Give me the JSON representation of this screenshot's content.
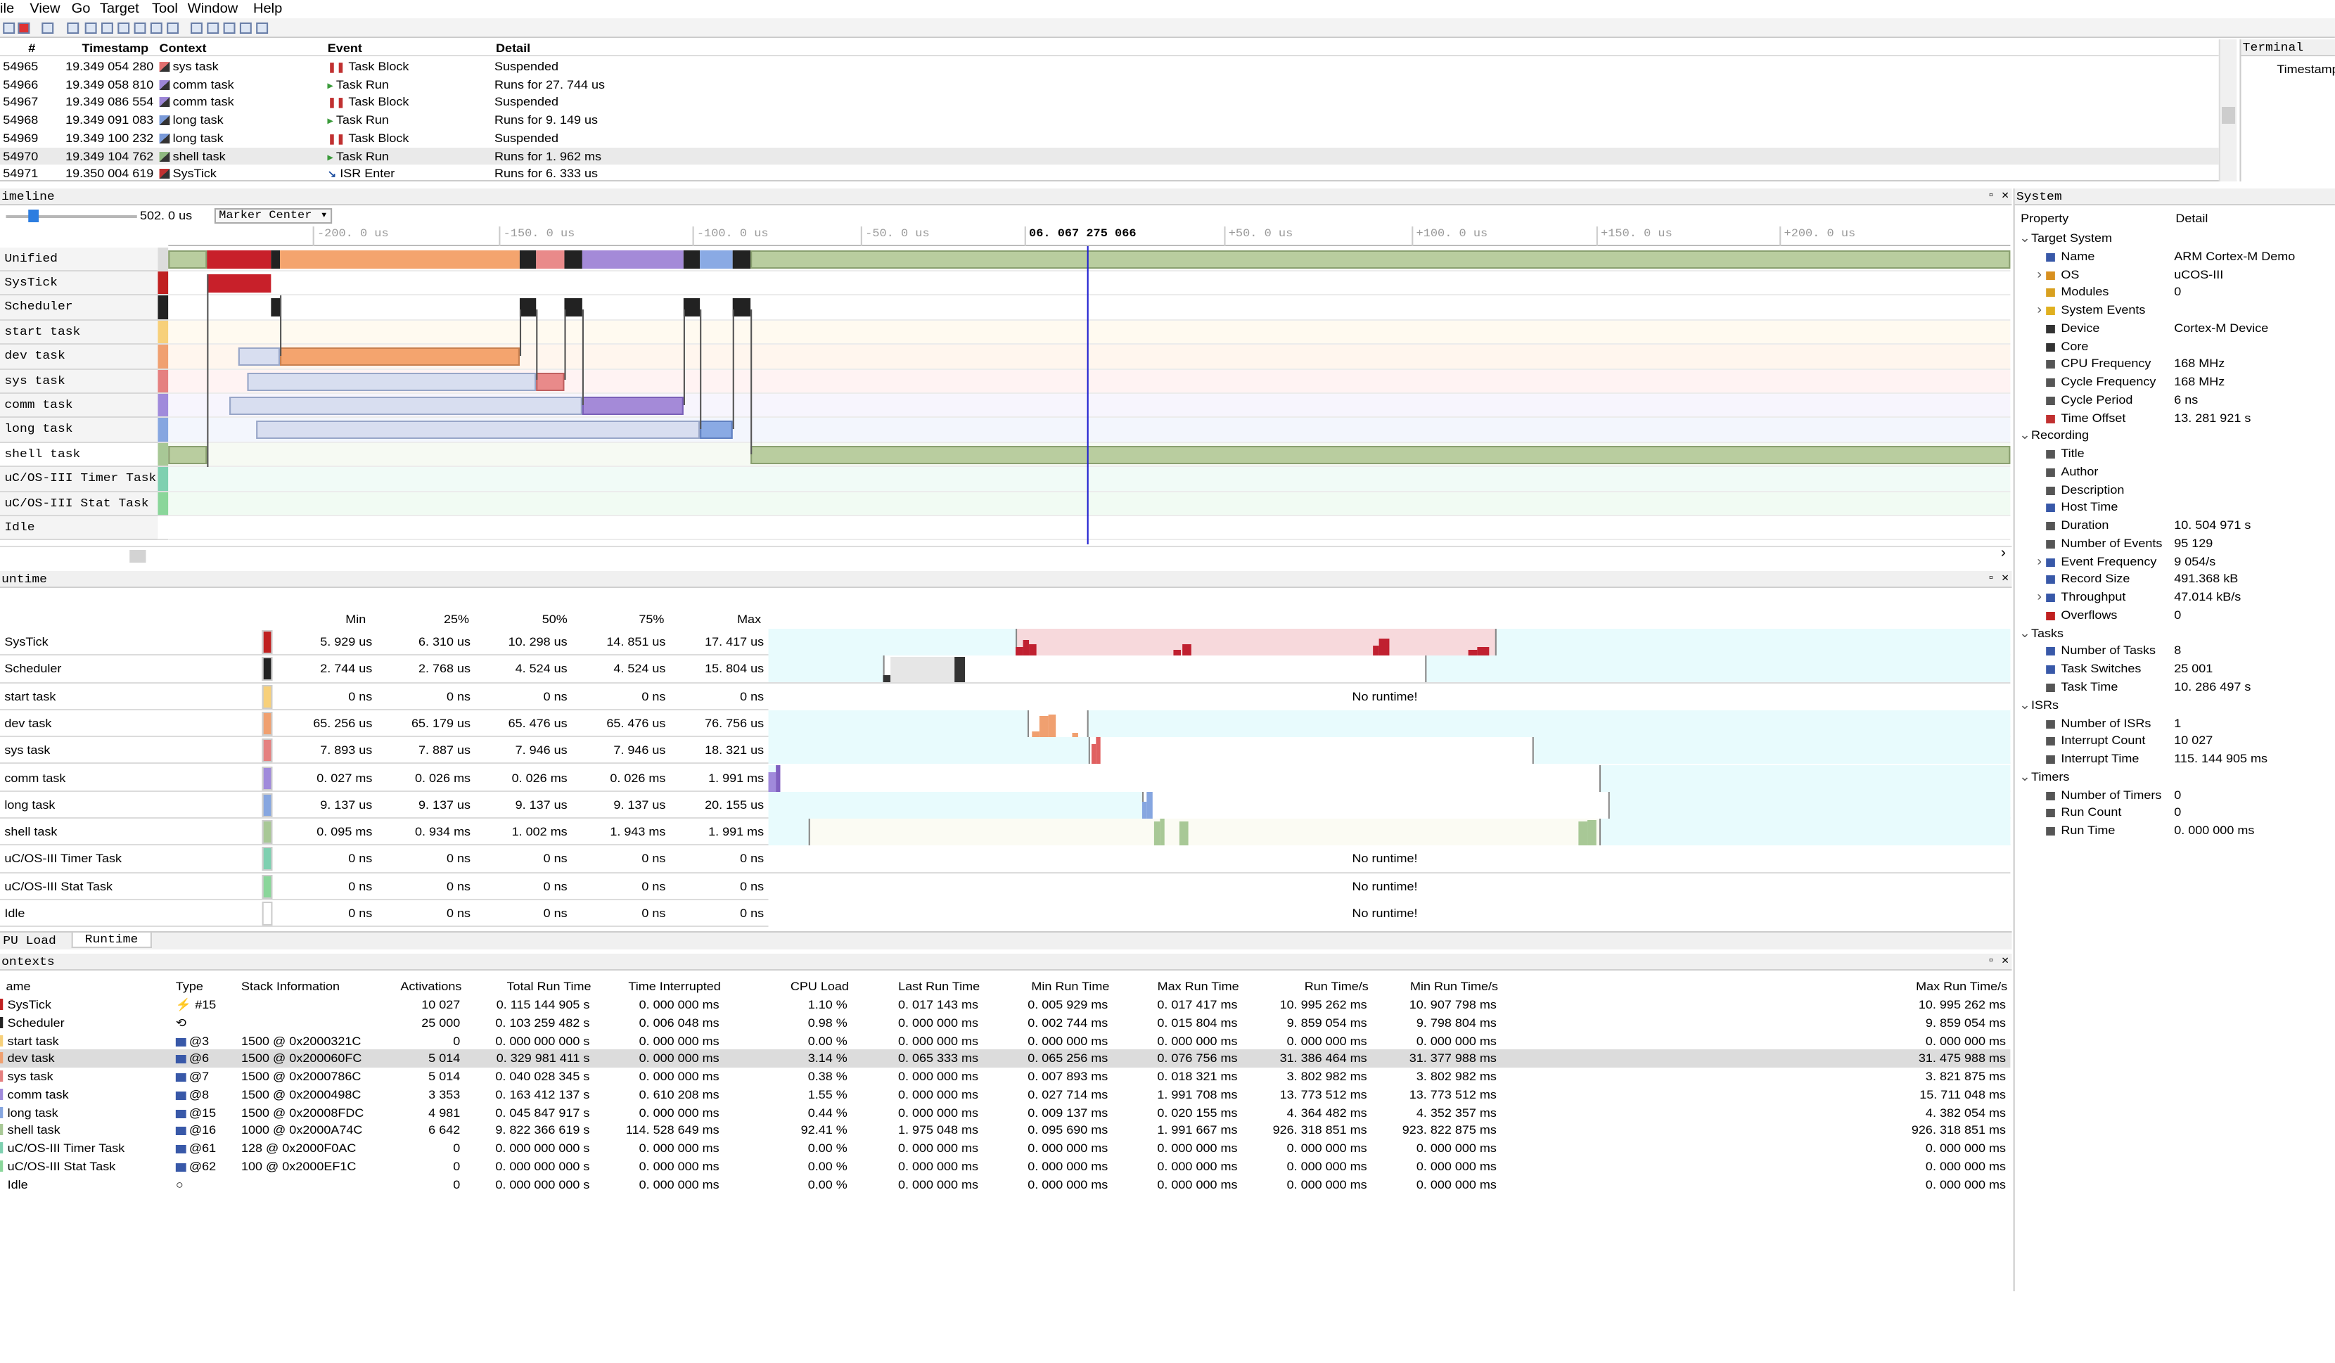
{
  "menu": [
    "ile",
    "View",
    "Go",
    "Target",
    "Tool",
    "Window",
    "Help"
  ],
  "events": {
    "headers": [
      "#",
      "Timestamp",
      "Context",
      "Event",
      "Detail"
    ],
    "rows": [
      {
        "num": "54965",
        "ts": "19.349 054 280",
        "ctx": "sys task",
        "evt": "Task Block",
        "detail": "Suspended",
        "color": "#e07070",
        "kind": "block"
      },
      {
        "num": "54966",
        "ts": "19.349 058 810",
        "ctx": "comm task",
        "evt": "Task Run",
        "detail": "Runs for 27. 744 us",
        "color": "#9c86d6",
        "kind": "run"
      },
      {
        "num": "54967",
        "ts": "19.349 086 554",
        "ctx": "comm task",
        "evt": "Task Block",
        "detail": "Suspended",
        "color": "#9c86d6",
        "kind": "block"
      },
      {
        "num": "54968",
        "ts": "19.349 091 083",
        "ctx": "long task",
        "evt": "Task Run",
        "detail": "Runs for 9. 149 us",
        "color": "#7a9ad8",
        "kind": "run"
      },
      {
        "num": "54969",
        "ts": "19.349 100 232",
        "ctx": "long task",
        "evt": "Task Block",
        "detail": "Suspended",
        "color": "#7a9ad8",
        "kind": "block"
      },
      {
        "num": "54970",
        "ts": "19.349 104 762",
        "ctx": "shell task",
        "evt": "Task Run",
        "detail": "Runs for 1. 962 ms",
        "color": "#8fb880",
        "kind": "run"
      },
      {
        "num": "54971",
        "ts": "19.350 004 619",
        "ctx": "SysTick",
        "evt": "ISR Enter",
        "detail": "Runs for 6. 333 us",
        "color": "#c03030",
        "kind": "isr"
      }
    ]
  },
  "terminal": {
    "title": "Terminal",
    "col": "Timestamp"
  },
  "timeline": {
    "title": "imeline",
    "zoom": "502. 0 us",
    "mode": "Marker Center",
    "ticks": [
      "-200. 0 us",
      "-150. 0 us",
      "-100. 0 us",
      "-50. 0 us",
      "06. 067 275 066",
      "+50. 0 us",
      "+100. 0 us",
      "+150. 0 us",
      "+200. 0 us"
    ],
    "lanes": [
      {
        "name": "Unified",
        "color": "#dcdcdc"
      },
      {
        "name": "SysTick",
        "color": "#c02020"
      },
      {
        "name": "Scheduler",
        "color": "#222222"
      },
      {
        "name": "start task",
        "color": "#f7d07a"
      },
      {
        "name": "dev task",
        "color": "#f0a070"
      },
      {
        "name": "sys task",
        "color": "#e58080"
      },
      {
        "name": "comm task",
        "color": "#a08adb"
      },
      {
        "name": "long task",
        "color": "#86a6e0"
      },
      {
        "name": "shell task",
        "color": "#a8c896"
      },
      {
        "name": "uC/OS-III Timer Task",
        "color": "#7ed0b0"
      },
      {
        "name": "uC/OS-III Stat Task",
        "color": "#8ad69a"
      },
      {
        "name": "Idle",
        "color": "#ffffff"
      }
    ]
  },
  "runtime": {
    "title": "untime",
    "headers": [
      "Min",
      "25%",
      "50%",
      "75%",
      "Max"
    ],
    "no_runtime": "No runtime!",
    "rows": [
      {
        "name": "SysTick",
        "vals": [
          "5. 929 us",
          "6. 310 us",
          "10. 298 us",
          "14. 851 us",
          "17. 417 us"
        ],
        "color": "#c02020"
      },
      {
        "name": "Scheduler",
        "vals": [
          "2. 744 us",
          "2. 768 us",
          "4. 524 us",
          "4. 524 us",
          "15. 804 us"
        ],
        "color": "#222222"
      },
      {
        "name": "start task",
        "vals": [
          "0 ns",
          "0 ns",
          "0 ns",
          "0 ns",
          "0 ns"
        ],
        "color": "#f7d07a"
      },
      {
        "name": "dev task",
        "vals": [
          "65. 256 us",
          "65. 179 us",
          "65. 476 us",
          "65. 476 us",
          "76. 756 us"
        ],
        "color": "#f0a070"
      },
      {
        "name": "sys task",
        "vals": [
          "7. 893 us",
          "7. 887 us",
          "7. 946 us",
          "7. 946 us",
          "18. 321 us"
        ],
        "color": "#e58080"
      },
      {
        "name": "comm task",
        "vals": [
          "0. 027 ms",
          "0. 026 ms",
          "0. 026 ms",
          "0. 026 ms",
          "1. 991 ms"
        ],
        "color": "#a08adb"
      },
      {
        "name": "long task",
        "vals": [
          "9. 137 us",
          "9. 137 us",
          "9. 137 us",
          "9. 137 us",
          "20. 155 us"
        ],
        "color": "#86a6e0"
      },
      {
        "name": "shell task",
        "vals": [
          "0. 095 ms",
          "0. 934 ms",
          "1. 002 ms",
          "1. 943 ms",
          "1. 991 ms"
        ],
        "color": "#a8c896"
      },
      {
        "name": "uC/OS-III Timer Task",
        "vals": [
          "0 ns",
          "0 ns",
          "0 ns",
          "0 ns",
          "0 ns"
        ],
        "color": "#7ed0b0"
      },
      {
        "name": "uC/OS-III Stat Task",
        "vals": [
          "0 ns",
          "0 ns",
          "0 ns",
          "0 ns",
          "0 ns"
        ],
        "color": "#8ad69a"
      },
      {
        "name": "Idle",
        "vals": [
          "0 ns",
          "0 ns",
          "0 ns",
          "0 ns",
          "0 ns"
        ],
        "color": "#ffffff"
      }
    ],
    "tabs": [
      "PU Load",
      "Runtime"
    ]
  },
  "contexts": {
    "title": "ontexts",
    "headers": [
      "ame",
      "Type",
      "Stack Information",
      "Activations",
      "Total Run Time",
      "Time Interrupted",
      "CPU Load",
      "Last Run Time",
      "Min Run Time",
      "Max Run Time",
      "Run Time/s",
      "Min Run Time/s",
      "Max Run Time/s"
    ],
    "rows": [
      [
        "SysTick",
        "#15",
        "",
        "10 027",
        "0. 115 144 905 s",
        "0. 000 000 ms",
        "1.10 %",
        "0. 017 143 ms",
        "0. 005 929 ms",
        "0. 017 417 ms",
        "10. 995 262 ms",
        "10. 907 798 ms",
        "10. 995 262 ms"
      ],
      [
        "Scheduler",
        "",
        "",
        "25 000",
        "0. 103 259 482 s",
        "0. 006 048 ms",
        "0.98 %",
        "0. 000 000 ms",
        "0. 002 744 ms",
        "0. 015 804 ms",
        "9. 859 054 ms",
        "9. 798 804 ms",
        "9. 859 054 ms"
      ],
      [
        "start task",
        "@3",
        "1500 @ 0x2000321C",
        "0",
        "0. 000 000 000 s",
        "0. 000 000 ms",
        "0.00 %",
        "0. 000 000 ms",
        "0. 000 000 ms",
        "0. 000 000 ms",
        "0. 000 000 ms",
        "0. 000 000 ms",
        "0. 000 000 ms"
      ],
      [
        "dev task",
        "@6",
        "1500 @ 0x200060FC",
        "5 014",
        "0. 329 981 411 s",
        "0. 000 000 ms",
        "3.14 %",
        "0. 065 333 ms",
        "0. 065 256 ms",
        "0. 076 756 ms",
        "31. 386 464 ms",
        "31. 377 988 ms",
        "31. 475 988 ms"
      ],
      [
        "sys task",
        "@7",
        "1500 @ 0x2000786C",
        "5 014",
        "0. 040 028 345 s",
        "0. 000 000 ms",
        "0.38 %",
        "0. 000 000 ms",
        "0. 007 893 ms",
        "0. 018 321 ms",
        "3. 802 982 ms",
        "3. 802 982 ms",
        "3. 821 875 ms"
      ],
      [
        "comm task",
        "@8",
        "1500 @ 0x2000498C",
        "3 353",
        "0. 163 412 137 s",
        "0. 610 208 ms",
        "1.55 %",
        "0. 000 000 ms",
        "0. 027 714 ms",
        "1. 991 708 ms",
        "13. 773 512 ms",
        "13. 773 512 ms",
        "15. 711 048 ms"
      ],
      [
        "long task",
        "@15",
        "1500 @ 0x20008FDC",
        "4 981",
        "0. 045 847 917 s",
        "0. 000 000 ms",
        "0.44 %",
        "0. 000 000 ms",
        "0. 009 137 ms",
        "0. 020 155 ms",
        "4. 364 482 ms",
        "4. 352 357 ms",
        "4. 382 054 ms"
      ],
      [
        "shell task",
        "@16",
        "1000 @ 0x2000A74C",
        "6 642",
        "9. 822 366 619 s",
        "114. 528 649 ms",
        "92.41 %",
        "1. 975 048 ms",
        "0. 095 690 ms",
        "1. 991 667 ms",
        "926. 318 851 ms",
        "923. 822 875 ms",
        "926. 318 851 ms"
      ],
      [
        "uC/OS-III Timer Task",
        "@61",
        "128 @ 0x2000F0AC",
        "0",
        "0. 000 000 000 s",
        "0. 000 000 ms",
        "0.00 %",
        "0. 000 000 ms",
        "0. 000 000 ms",
        "0. 000 000 ms",
        "0. 000 000 ms",
        "0. 000 000 ms",
        "0. 000 000 ms"
      ],
      [
        "uC/OS-III Stat Task",
        "@62",
        "100 @ 0x2000EF1C",
        "0",
        "0. 000 000 000 s",
        "0. 000 000 ms",
        "0.00 %",
        "0. 000 000 ms",
        "0. 000 000 ms",
        "0. 000 000 ms",
        "0. 000 000 ms",
        "0. 000 000 ms",
        "0. 000 000 ms"
      ],
      [
        "Idle",
        "",
        "",
        "0",
        "0. 000 000 000 s",
        "0. 000 000 ms",
        "0.00 %",
        "0. 000 000 ms",
        "0. 000 000 ms",
        "0. 000 000 ms",
        "0. 000 000 ms",
        "0. 000 000 ms",
        "0. 000 000 ms"
      ]
    ]
  },
  "system": {
    "title": "System",
    "headers": [
      "Property",
      "Detail"
    ],
    "rows": [
      {
        "l": 0,
        "g": "v",
        "label": "Target System",
        "val": ""
      },
      {
        "l": 1,
        "g": "",
        "label": "Name",
        "val": "ARM Cortex-M Demo"
      },
      {
        "l": 1,
        "g": ">",
        "label": "OS",
        "val": "uCOS-III"
      },
      {
        "l": 1,
        "g": "",
        "label": "Modules",
        "val": "0"
      },
      {
        "l": 1,
        "g": ">",
        "label": "System Events",
        "val": ""
      },
      {
        "l": 1,
        "g": "",
        "label": "Device",
        "val": "Cortex-M Device"
      },
      {
        "l": 1,
        "g": "",
        "label": "Core",
        "val": ""
      },
      {
        "l": 1,
        "g": "",
        "label": "CPU Frequency",
        "val": "168 MHz"
      },
      {
        "l": 1,
        "g": "",
        "label": "Cycle Frequency",
        "val": "168 MHz"
      },
      {
        "l": 1,
        "g": "",
        "label": "Cycle Period",
        "val": "6 ns"
      },
      {
        "l": 1,
        "g": "",
        "label": "Time Offset",
        "val": "13. 281 921 s"
      },
      {
        "l": 0,
        "g": "v",
        "label": "Recording",
        "val": ""
      },
      {
        "l": 1,
        "g": "",
        "label": "Title",
        "val": ""
      },
      {
        "l": 1,
        "g": "",
        "label": "Author",
        "val": ""
      },
      {
        "l": 1,
        "g": "",
        "label": "Description",
        "val": ""
      },
      {
        "l": 1,
        "g": "",
        "label": "Host Time",
        "val": ""
      },
      {
        "l": 1,
        "g": "",
        "label": "Duration",
        "val": "10. 504 971 s"
      },
      {
        "l": 1,
        "g": "",
        "label": "Number of Events",
        "val": "95 129"
      },
      {
        "l": 1,
        "g": ">",
        "label": "Event Frequency",
        "val": "9 054/s"
      },
      {
        "l": 1,
        "g": "",
        "label": "Record Size",
        "val": "491.368 kB"
      },
      {
        "l": 1,
        "g": ">",
        "label": "Throughput",
        "val": "47.014 kB/s"
      },
      {
        "l": 1,
        "g": "",
        "label": "Overflows",
        "val": "0"
      },
      {
        "l": 0,
        "g": "v",
        "label": "Tasks",
        "val": ""
      },
      {
        "l": 1,
        "g": "",
        "label": "Number of Tasks",
        "val": "8"
      },
      {
        "l": 1,
        "g": "",
        "label": "Task Switches",
        "val": "25 001"
      },
      {
        "l": 1,
        "g": "",
        "label": "Task Time",
        "val": "10. 286 497 s"
      },
      {
        "l": 0,
        "g": "v",
        "label": "ISRs",
        "val": ""
      },
      {
        "l": 1,
        "g": "",
        "label": "Number of ISRs",
        "val": "1"
      },
      {
        "l": 1,
        "g": "",
        "label": "Interrupt Count",
        "val": "10 027"
      },
      {
        "l": 1,
        "g": "",
        "label": "Interrupt Time",
        "val": "115. 144 905 ms"
      },
      {
        "l": 0,
        "g": "v",
        "label": "Timers",
        "val": ""
      },
      {
        "l": 1,
        "g": "",
        "label": "Number of Timers",
        "val": "0"
      },
      {
        "l": 1,
        "g": "",
        "label": "Run Count",
        "val": "0"
      },
      {
        "l": 1,
        "g": "",
        "label": "Run Time",
        "val": "0. 000 000 ms"
      }
    ]
  }
}
